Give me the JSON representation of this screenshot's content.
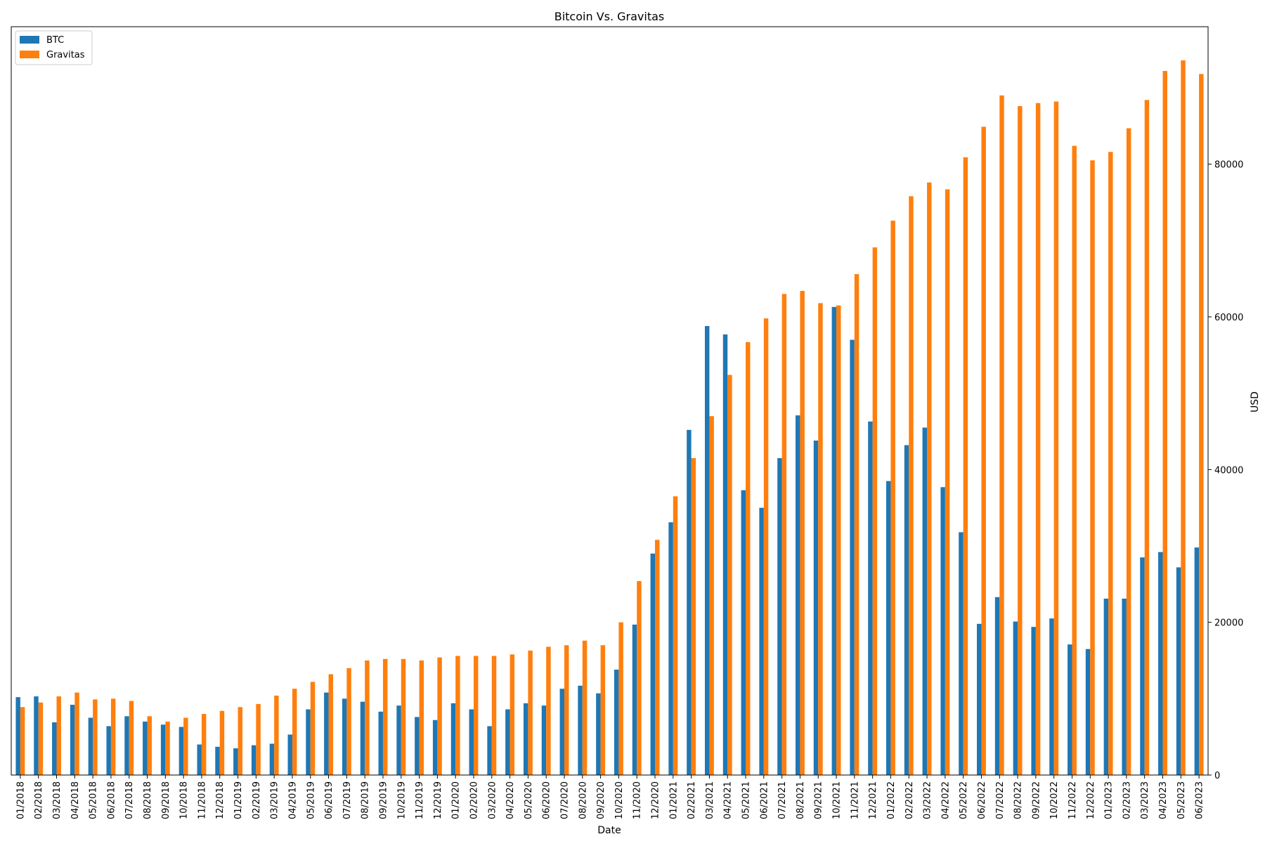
{
  "chart_data": {
    "type": "bar",
    "title": "Bitcoin Vs. Gravitas",
    "xlabel": "Date",
    "ylabel": "USD",
    "y_axis_side": "right",
    "ylim": [
      0,
      98000
    ],
    "yticks": [
      0,
      20000,
      40000,
      60000,
      80000
    ],
    "ytick_labels": [
      "0",
      "20000",
      "40000",
      "60000",
      "80000"
    ],
    "grid": false,
    "legend_position": "top-left",
    "categories": [
      "01/2018",
      "02/2018",
      "03/2018",
      "04/2018",
      "05/2018",
      "06/2018",
      "07/2018",
      "08/2018",
      "09/2018",
      "10/2018",
      "11/2018",
      "12/2018",
      "01/2019",
      "02/2019",
      "03/2019",
      "04/2019",
      "05/2019",
      "06/2019",
      "07/2019",
      "08/2019",
      "09/2019",
      "10/2019",
      "11/2019",
      "12/2019",
      "01/2020",
      "02/2020",
      "03/2020",
      "04/2020",
      "05/2020",
      "06/2020",
      "07/2020",
      "08/2020",
      "09/2020",
      "10/2020",
      "11/2020",
      "12/2020",
      "01/2021",
      "02/2021",
      "03/2021",
      "04/2021",
      "05/2021",
      "06/2021",
      "07/2021",
      "08/2021",
      "09/2021",
      "10/2021",
      "11/2021",
      "12/2021",
      "01/2022",
      "02/2022",
      "03/2022",
      "04/2022",
      "05/2022",
      "06/2022",
      "07/2022",
      "08/2022",
      "09/2022",
      "10/2022",
      "11/2022",
      "12/2022",
      "01/2023",
      "02/2023",
      "03/2023",
      "04/2023",
      "05/2023",
      "06/2023"
    ],
    "series": [
      {
        "name": "BTC",
        "color": "#1f77b4",
        "values": [
          10200,
          10300,
          6900,
          9200,
          7500,
          6400,
          7700,
          7000,
          6600,
          6300,
          4000,
          3700,
          3500,
          3900,
          4100,
          5300,
          8600,
          10800,
          10000,
          9600,
          8300,
          9100,
          7600,
          7200,
          9400,
          8600,
          6400,
          8600,
          9400,
          9100,
          11300,
          11700,
          10700,
          13800,
          19700,
          29000,
          33100,
          45200,
          58800,
          57700,
          37300,
          35000,
          41500,
          47100,
          43800,
          61300,
          57000,
          46300,
          38500,
          43200,
          45500,
          37700,
          31800,
          19800,
          23300,
          20100,
          19400,
          20500,
          17100,
          16500,
          23100,
          23100,
          28500,
          29200,
          27200,
          29800
        ]
      },
      {
        "name": "Gravitas",
        "color": "#ff7f0e",
        "values": [
          8900,
          9500,
          10300,
          10800,
          9900,
          10000,
          9700,
          7700,
          7000,
          7500,
          8000,
          8400,
          8900,
          9300,
          10400,
          11300,
          12200,
          13200,
          14000,
          15000,
          15200,
          15200,
          15000,
          15400,
          15600,
          15600,
          15600,
          15800,
          16300,
          16800,
          17000,
          17600,
          17000,
          20000,
          25400,
          30800,
          36500,
          41500,
          47000,
          52400,
          56700,
          59800,
          63000,
          63400,
          61800,
          61500,
          65600,
          69100,
          72600,
          75800,
          77600,
          76700,
          80900,
          84900,
          89000,
          87600,
          88000,
          88200,
          82400,
          80500,
          81600,
          84700,
          88400,
          92200,
          93600,
          91800
        ]
      }
    ]
  }
}
